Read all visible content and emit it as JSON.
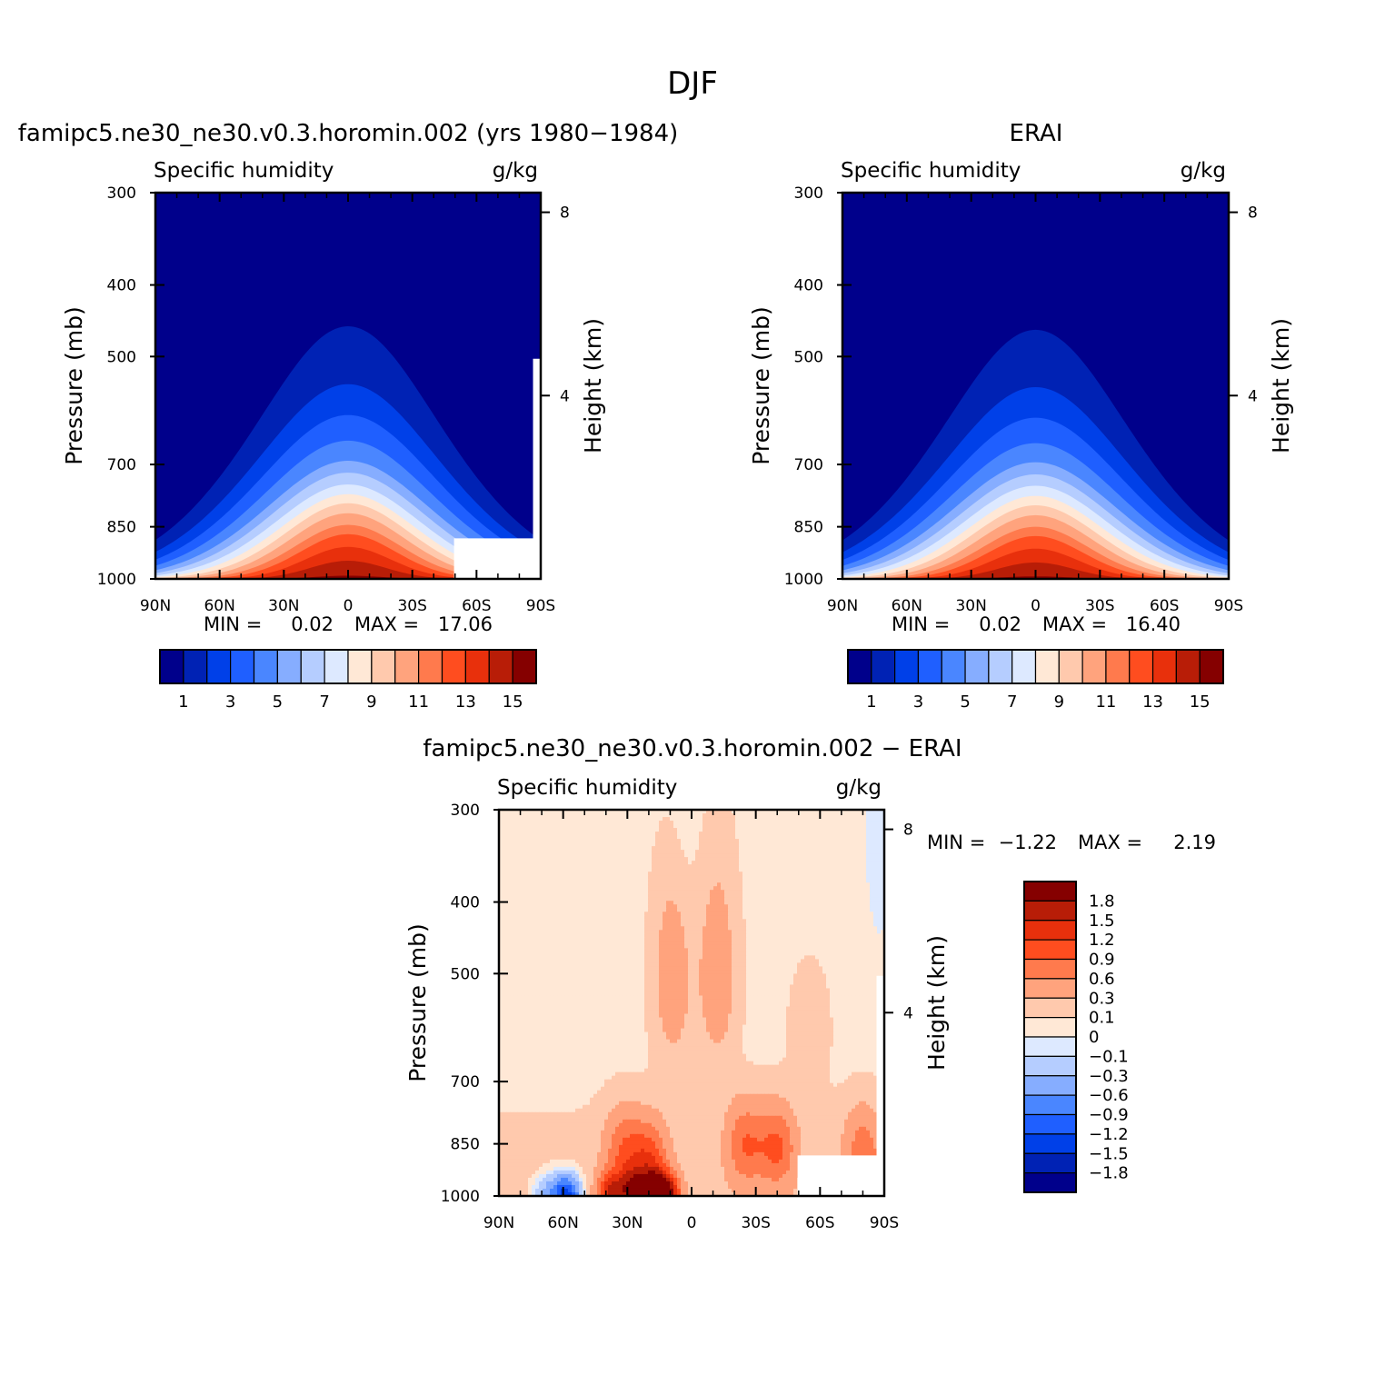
{
  "figure": {
    "title": "DJF"
  },
  "colors": {
    "sequential": [
      "#00008b",
      "#0022b4",
      "#0040e8",
      "#1f5fff",
      "#4a86ff",
      "#86adff",
      "#b5cdff",
      "#dde9ff",
      "#ffe8d6",
      "#ffc9ad",
      "#ffa37d",
      "#ff7a4d",
      "#ff4d1f",
      "#e8300c",
      "#b81d07",
      "#850000"
    ],
    "diverging": [
      "#00008b",
      "#0022b4",
      "#0040e8",
      "#1f5fff",
      "#4a86ff",
      "#86adff",
      "#b5cdff",
      "#dde9ff",
      "#ffe8d6",
      "#ffc9ad",
      "#ffa37d",
      "#ff7a4d",
      "#ff4d1f",
      "#e8300c",
      "#b81d07",
      "#850000"
    ]
  },
  "chart_data": [
    {
      "type": "heatmap",
      "title": "famipc5.ne30_ne30.v0.3.horomin.002 (yrs 1980−1984)",
      "subtitle_left": "Specific humidity",
      "subtitle_right": "g/kg",
      "ylabel": "Pressure (mb)",
      "ylabel_right": "Height (km)",
      "x_ticks": [
        "90N",
        "60N",
        "30N",
        "0",
        "30S",
        "60S",
        "90S"
      ],
      "y_ticks": [
        "300",
        "400",
        "500",
        "700",
        "850",
        "1000"
      ],
      "y_ticks_right": [
        "8",
        "4"
      ],
      "ylim": [
        300,
        1000
      ],
      "xlim": [
        90,
        -90
      ],
      "min_label": "MIN =",
      "min_value": "0.02",
      "max_label": "MAX =",
      "max_value": "17.06",
      "colorbar_labels": [
        "1",
        "3",
        "5",
        "7",
        "9",
        "11",
        "13",
        "15"
      ],
      "contour_peaks_hpa": [
        1000,
        990,
        945,
        905,
        870,
        845,
        815,
        790,
        768,
        745,
        718,
        692,
        650,
        600,
        545,
        455
      ],
      "peak_latitude": 0
    },
    {
      "type": "heatmap",
      "title": "ERAI",
      "subtitle_left": "Specific humidity",
      "subtitle_right": "g/kg",
      "ylabel": "Pressure (mb)",
      "ylabel_right": "Height (km)",
      "x_ticks": [
        "90N",
        "60N",
        "30N",
        "0",
        "30S",
        "60S",
        "90S"
      ],
      "y_ticks": [
        "300",
        "400",
        "500",
        "700",
        "850",
        "1000"
      ],
      "y_ticks_right": [
        "8",
        "4"
      ],
      "ylim": [
        300,
        1000
      ],
      "xlim": [
        90,
        -90
      ],
      "min_label": "MIN =",
      "min_value": "0.02",
      "max_label": "MAX =",
      "max_value": "16.40",
      "colorbar_labels": [
        "1",
        "3",
        "5",
        "7",
        "9",
        "11",
        "13",
        "15"
      ],
      "contour_peaks_hpa": [
        1000,
        992,
        950,
        910,
        875,
        850,
        820,
        795,
        772,
        748,
        722,
        695,
        655,
        605,
        550,
        460
      ],
      "peak_latitude": 0
    },
    {
      "type": "heatmap",
      "title": "famipc5.ne30_ne30.v0.3.horomin.002 − ERAI",
      "subtitle_left": "Specific humidity",
      "subtitle_right": "g/kg",
      "ylabel": "Pressure (mb)",
      "ylabel_right": "Height (km)",
      "x_ticks": [
        "90N",
        "60N",
        "30N",
        "0",
        "30S",
        "60S",
        "90S"
      ],
      "y_ticks": [
        "300",
        "400",
        "500",
        "700",
        "850",
        "1000"
      ],
      "y_ticks_right": [
        "8",
        "4"
      ],
      "ylim": [
        300,
        1000
      ],
      "xlim": [
        90,
        -90
      ],
      "min_label": "MIN =",
      "min_value": "−1.22",
      "max_label": "MAX =",
      "max_value": "2.19",
      "colorbar_labels": [
        "1.8",
        "1.5",
        "1.2",
        "0.9",
        "0.6",
        "0.3",
        "0.1",
        "0",
        "−0.1",
        "−0.3",
        "−0.6",
        "−0.9",
        "−1.2",
        "−1.5",
        "−1.8"
      ],
      "background_value": 0.05,
      "features": [
        {
          "lat": 12,
          "p": 1000,
          "value": 1.9
        },
        {
          "lat": 18,
          "p": 990,
          "value": 1.6
        },
        {
          "lat": 28,
          "p": 985,
          "value": 1.3
        },
        {
          "lat": 38,
          "p": 990,
          "value": 1.2
        },
        {
          "lat": 20,
          "p": 900,
          "value": 0.95
        },
        {
          "lat": 32,
          "p": 870,
          "value": 0.7
        },
        {
          "lat": -25,
          "p": 850,
          "value": 0.75
        },
        {
          "lat": -40,
          "p": 860,
          "value": 0.8
        },
        {
          "lat": -80,
          "p": 860,
          "value": 0.6
        },
        {
          "lat": -83,
          "p": 960,
          "value": 1.0
        },
        {
          "lat": 9,
          "p": 500,
          "value": 0.45
        },
        {
          "lat": -12,
          "p": 500,
          "value": 0.45
        },
        {
          "lat": -55,
          "p": 600,
          "value": 0.2
        },
        {
          "lat": 58,
          "p": 1000,
          "value": -1.22
        },
        {
          "lat": 65,
          "p": 995,
          "value": -0.6
        },
        {
          "lat": 5,
          "p": 320,
          "value": -0.08
        },
        {
          "lat": -88,
          "p": 330,
          "value": -0.08
        }
      ]
    }
  ]
}
